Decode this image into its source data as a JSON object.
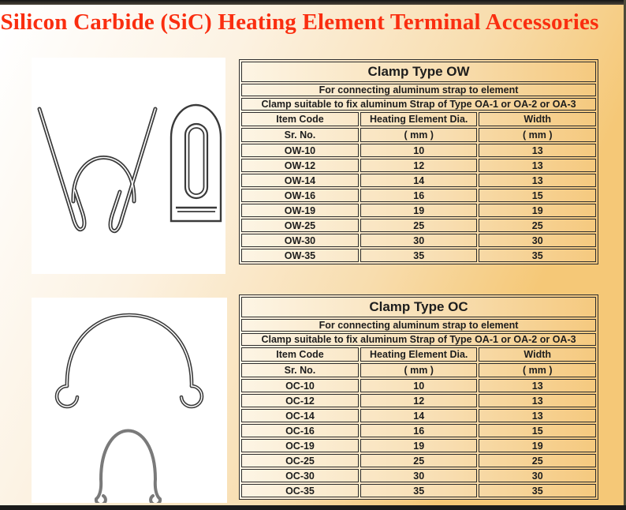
{
  "header": {
    "title": "Silicon Carbide (SiC) Heating Element Terminal Accessories",
    "title_color": "#fa2e10"
  },
  "colors": {
    "page_orange": "#f5c877",
    "page_cream": "#fdf5e5",
    "table_border": "#2d2d2d",
    "text": "#1d1d1d",
    "wire_dark": "#3a3a3a",
    "wire_gray": "#7a7a7a"
  },
  "images": [
    {
      "name": "clamp-type-ow-drawing",
      "description": "wishbone wire clamp with terminal tab plate"
    },
    {
      "name": "clamp-type-oc-drawing",
      "description": "omega wire clamps with curled ends"
    }
  ],
  "tables": [
    {
      "title": "Clamp Type OW",
      "note1": "For connecting aluminum strap to element",
      "note2": "Clamp suitable to fix aluminum Strap of Type OA-1 or OA-2 or OA-3",
      "columns": [
        "Item Code",
        "Heating Element Dia.",
        "Width"
      ],
      "units": [
        "Sr. No.",
        "( mm )",
        "( mm )"
      ],
      "rows": [
        [
          "OW-10",
          "10",
          "13"
        ],
        [
          "OW-12",
          "12",
          "13"
        ],
        [
          "OW-14",
          "14",
          "13"
        ],
        [
          "OW-16",
          "16",
          "15"
        ],
        [
          "OW-19",
          "19",
          "19"
        ],
        [
          "OW-25",
          "25",
          "25"
        ],
        [
          "OW-30",
          "30",
          "30"
        ],
        [
          "OW-35",
          "35",
          "35"
        ]
      ]
    },
    {
      "title": "Clamp Type OC",
      "note1": "For connecting aluminum strap to element",
      "note2": "Clamp suitable to fix aluminum Strap of Type OA-1 or OA-2 or OA-3",
      "columns": [
        "Item Code",
        "Heating Element Dia.",
        "Width"
      ],
      "units": [
        "Sr. No.",
        "( mm )",
        "( mm )"
      ],
      "rows": [
        [
          "OC-10",
          "10",
          "13"
        ],
        [
          "OC-12",
          "12",
          "13"
        ],
        [
          "OC-14",
          "14",
          "13"
        ],
        [
          "OC-16",
          "16",
          "15"
        ],
        [
          "OC-19",
          "19",
          "19"
        ],
        [
          "OC-25",
          "25",
          "25"
        ],
        [
          "OC-30",
          "30",
          "30"
        ],
        [
          "OC-35",
          "35",
          "35"
        ]
      ]
    }
  ]
}
